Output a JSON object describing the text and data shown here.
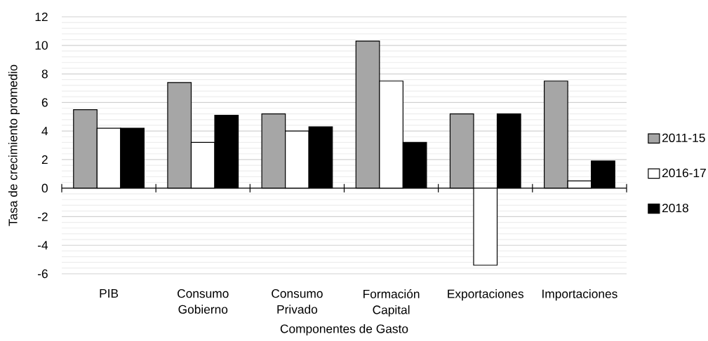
{
  "chart_data": {
    "type": "bar",
    "xlabel": "Componentes de Gasto",
    "ylabel": "Tasa de crecimiento promedio",
    "categories": [
      "PIB",
      "Consumo Gobierno",
      "Consumo Privado",
      "Formación Capital",
      "Exportaciones",
      "Importaciones"
    ],
    "series": [
      {
        "name": "2011-15",
        "color": "#a6a6a6",
        "values": [
          5.5,
          7.4,
          5.2,
          10.3,
          5.2,
          7.5
        ]
      },
      {
        "name": "2016-17",
        "color": "#ffffff",
        "values": [
          4.2,
          3.2,
          4.0,
          7.5,
          -5.4,
          0.5
        ]
      },
      {
        "name": "2018",
        "color": "#000000",
        "values": [
          4.2,
          5.1,
          4.3,
          3.2,
          5.2,
          1.9
        ]
      }
    ],
    "ylim": [
      -6,
      12
    ],
    "yticks": [
      -6,
      -4,
      -2,
      0,
      2,
      4,
      6,
      8,
      10,
      12
    ],
    "grid": "y",
    "legend": "right"
  }
}
